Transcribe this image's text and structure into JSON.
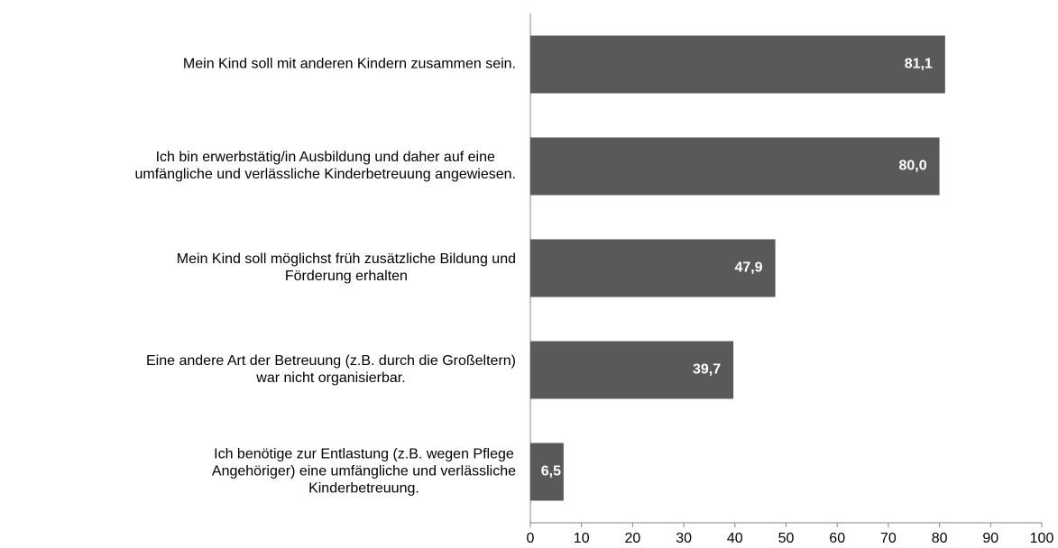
{
  "chart_data": {
    "type": "bar",
    "orientation": "horizontal",
    "categories": [
      [
        "Mein Kind soll mit anderen Kindern zusammen sein."
      ],
      [
        "Ich bin erwerbstätig/in Ausbildung und daher auf eine",
        "umfängliche und verlässliche Kinderbetreuung angewiesen."
      ],
      [
        "Mein Kind soll möglichst früh zusätzliche Bildung und",
        "Förderung erhalten"
      ],
      [
        "Eine andere Art der Betreuung (z.B. durch die Großeltern)",
        "war nicht organisierbar."
      ],
      [
        "Ich benötige zur Entlastung (z.B. wegen Pflege",
        "Angehöriger) eine umfängliche und verlässliche",
        "Kinderbetreuung."
      ]
    ],
    "values": [
      81.1,
      80.0,
      47.9,
      39.7,
      6.5
    ],
    "value_labels": [
      "81,1",
      "80,0",
      "47,9",
      "39,7",
      "6,5"
    ],
    "color": "#595959",
    "xlim": [
      0,
      100
    ],
    "xticks": [
      0,
      10,
      20,
      30,
      40,
      50,
      60,
      70,
      80,
      90,
      100
    ],
    "grid": false
  }
}
